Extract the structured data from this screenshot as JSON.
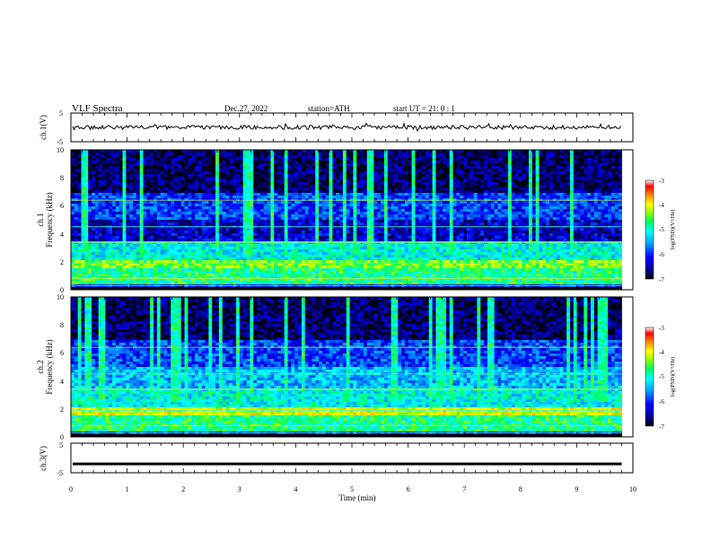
{
  "header": {
    "title": "VLF  Spectra",
    "date": "Dec.27, 2022",
    "station": "station=ATH",
    "start": "start  UT  =    21: 0   : 1"
  },
  "chart_data": [
    {
      "type": "line",
      "name": "ch1-waveform",
      "ylabel": "ch.1(V)",
      "ylim": [
        -5,
        5
      ],
      "yticks": [
        "5",
        "-5"
      ],
      "xlim": [
        0,
        10
      ],
      "trace_level": 0,
      "trace_end": 9.8
    },
    {
      "type": "heatmap",
      "name": "ch1-spectrogram",
      "ylabel": "ch.1\nFrequency  (kHz)",
      "ylim": [
        0,
        10
      ],
      "yticks": [
        "0",
        "2",
        "4",
        "6",
        "8",
        "10"
      ],
      "xlim": [
        0,
        10
      ],
      "data_end": 9.8,
      "colorbar": {
        "label": "log(PSD)(V²/Hz)",
        "range": [
          -7,
          -3
        ],
        "ticks": [
          "-3",
          "-4",
          "-5",
          "-6",
          "-7"
        ]
      }
    },
    {
      "type": "heatmap",
      "name": "ch2-spectrogram",
      "ylabel": "ch.2\nFrequency  (kHz)",
      "ylim": [
        0,
        10
      ],
      "yticks": [
        "0",
        "2",
        "4",
        "6",
        "8",
        "10"
      ],
      "xlim": [
        0,
        10
      ],
      "data_end": 9.8,
      "colorbar": {
        "label": "log(PSD)(V²/Hz)",
        "range": [
          -7,
          -3
        ],
        "ticks": [
          "-3",
          "-4",
          "-5",
          "-6",
          "-7"
        ]
      }
    },
    {
      "type": "line",
      "name": "ch3-waveform",
      "ylabel": "ch.3(V)",
      "ylim": [
        -5,
        5
      ],
      "yticks": [
        "5",
        "0",
        "-5"
      ],
      "xlim": [
        0,
        10
      ],
      "trace_level": -2,
      "trace_end": 9.8,
      "xlabel": "Time  (min)",
      "xticks": [
        "0",
        "1",
        "2",
        "3",
        "4",
        "5",
        "6",
        "7",
        "8",
        "9",
        "10"
      ]
    }
  ]
}
